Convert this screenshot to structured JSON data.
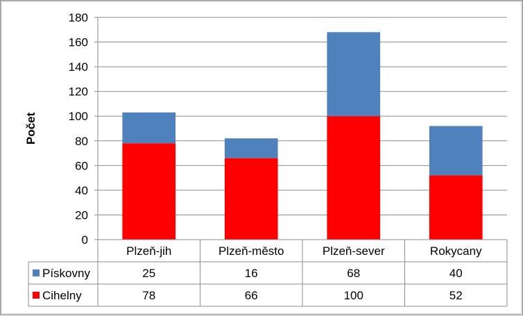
{
  "chart_data": {
    "type": "bar",
    "stacked": true,
    "categories": [
      "Plzeň-jih",
      "Plzeň-město",
      "Plzeň-sever",
      "Rokycany"
    ],
    "series": [
      {
        "name": "Cihelny",
        "values": [
          78,
          66,
          100,
          52
        ],
        "color": "#ff0000"
      },
      {
        "name": "Pískovny",
        "values": [
          25,
          16,
          68,
          40
        ],
        "color": "#4f81bd"
      }
    ],
    "table_rows": [
      {
        "name": "Pískovny",
        "values": [
          "25",
          "16",
          "68",
          "40"
        ],
        "color": "#4f81bd"
      },
      {
        "name": "Cihelny",
        "values": [
          "78",
          "66",
          "100",
          "52"
        ],
        "color": "#ff0000"
      }
    ],
    "ylabel": "Počet",
    "xlabel": "",
    "ylim": [
      0,
      180
    ],
    "yticks": [
      "0",
      "20",
      "40",
      "60",
      "80",
      "100",
      "120",
      "140",
      "160",
      "180"
    ],
    "grid": true,
    "legend": "data-table"
  }
}
